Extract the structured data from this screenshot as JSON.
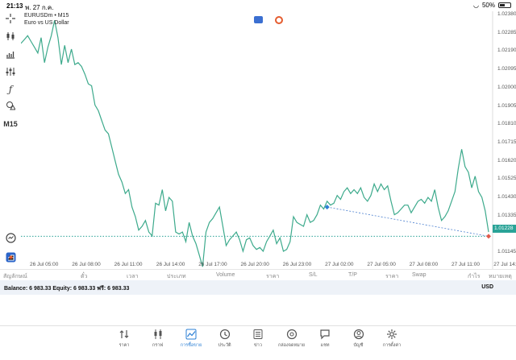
{
  "status": {
    "time": "21:13",
    "date": "พ. 27 ก.ค.",
    "battery": "50%",
    "battery_level": 0.5
  },
  "toolbar": {
    "timeframe": "M15"
  },
  "symbol": {
    "name": "EURUSDm • M15",
    "description": "Euro vs US Dollar"
  },
  "price_axis": [
    "1.02380",
    "1.02285",
    "1.02190",
    "1.02095",
    "1.02000",
    "1.01905",
    "1.01810",
    "1.01715",
    "1.01620",
    "1.01525",
    "1.01430",
    "1.01335",
    "1.01228",
    "1.01145"
  ],
  "current_price": "1.01228",
  "time_axis": [
    "26 Jul 05:00",
    "26 Jul 08:00",
    "26 Jul 11:00",
    "26 Jul 14:00",
    "26 Jul 17:00",
    "26 Jul 20:00",
    "26 Jul 23:00",
    "27 Jul 02:00",
    "27 Jul 05:00",
    "27 Jul 08:00",
    "27 Jul 11:00",
    "27 Jul 14:00"
  ],
  "chart_data": {
    "type": "line",
    "title": "EURUSDm • M15",
    "series": [
      {
        "name": "EURUSDm",
        "color": "#3daa8c",
        "values": [
          1.0223,
          1.0225,
          1.0227,
          1.0224,
          1.0221,
          1.0218,
          1.0226,
          1.0213,
          1.0221,
          1.0227,
          1.0235,
          1.0226,
          1.0212,
          1.0222,
          1.0213,
          1.022,
          1.0212,
          1.0213,
          1.0211,
          1.0207,
          1.0202,
          1.0201,
          1.0191,
          1.0188,
          1.0183,
          1.0178,
          1.0176,
          1.0169,
          1.0162,
          1.0155,
          1.0151,
          1.0145,
          1.0147,
          1.0138,
          1.0133,
          1.0126,
          1.0128,
          1.0131,
          1.0125,
          1.0123,
          1.014,
          1.0139,
          1.0147,
          1.0136,
          1.0143,
          1.0141,
          1.0125,
          1.0124,
          1.0125,
          1.012,
          1.013,
          1.0123,
          1.0119,
          1.0113,
          1.0107,
          1.0125,
          1.013,
          1.0132,
          1.0135,
          1.0138,
          1.0128,
          1.0118,
          1.0121,
          1.0123,
          1.0125,
          1.0121,
          1.0115,
          1.0121,
          1.0122,
          1.0118,
          1.0116,
          1.0117,
          1.0115,
          1.012,
          1.0123,
          1.0126,
          1.0119,
          1.0122,
          1.0115,
          1.0116,
          1.012,
          1.0133,
          1.013,
          1.0129,
          1.0128,
          1.0134,
          1.013,
          1.0131,
          1.0134,
          1.0139,
          1.0137,
          1.0141,
          1.0139,
          1.014,
          1.0144,
          1.0142,
          1.0146,
          1.0148,
          1.0145,
          1.0147,
          1.0145,
          1.0148,
          1.0143,
          1.0141,
          1.0144,
          1.015,
          1.0146,
          1.015,
          1.0147,
          1.0149,
          1.0141,
          1.0134,
          1.0135,
          1.0137,
          1.0139,
          1.0139,
          1.0135,
          1.0138,
          1.0141,
          1.0142,
          1.014,
          1.0143,
          1.0141,
          1.0147,
          1.0138,
          1.0131,
          1.0133,
          1.0136,
          1.0141,
          1.0146,
          1.0158,
          1.0168,
          1.0159,
          1.0156,
          1.0148,
          1.0154,
          1.0146,
          1.0143,
          1.0136,
          1.0125
        ]
      }
    ],
    "x_range": [
      "26 Jul 03:45",
      "27 Jul 13:15"
    ],
    "ylim": [
      1.011,
      1.0238
    ],
    "current_price": 1.01228,
    "trade_line": {
      "open_price": 1.0138,
      "close_price": 1.01228
    },
    "grid": false
  },
  "columns": [
    "สัญลักษณ์",
    "ตั๋ว",
    "เวลา",
    "ประเภท",
    "Volume",
    "ราคา",
    "S/L",
    "T/P",
    "ราคา",
    "Swap",
    "กำไร",
    "หมายเหตุ"
  ],
  "balance": {
    "text": "Balance: 6 983.33 Equity: 6 983.33 ฟรี: 6 983.33",
    "currency": "USD"
  },
  "nav": [
    {
      "label": "ราคา",
      "icon": "quotes-icon"
    },
    {
      "label": "กราฟ",
      "icon": "chart-icon"
    },
    {
      "label": "การซื้อขาย",
      "icon": "trade-icon"
    },
    {
      "label": "ประวัติ",
      "icon": "history-icon"
    },
    {
      "label": "ข่าว",
      "icon": "news-icon"
    },
    {
      "label": "กล่องจดหมาย",
      "icon": "mailbox-icon"
    },
    {
      "label": "แชท",
      "icon": "chat-icon"
    },
    {
      "label": "บัญชี",
      "icon": "account-icon"
    },
    {
      "label": "การตั้งค่า",
      "icon": "settings-icon"
    }
  ],
  "colors": {
    "line": "#3daa8c",
    "accent": "#2b7fd4",
    "price_tag": "#2aa397",
    "sell_marker": "#e05a4a",
    "buy_marker": "#2b7fd4"
  }
}
